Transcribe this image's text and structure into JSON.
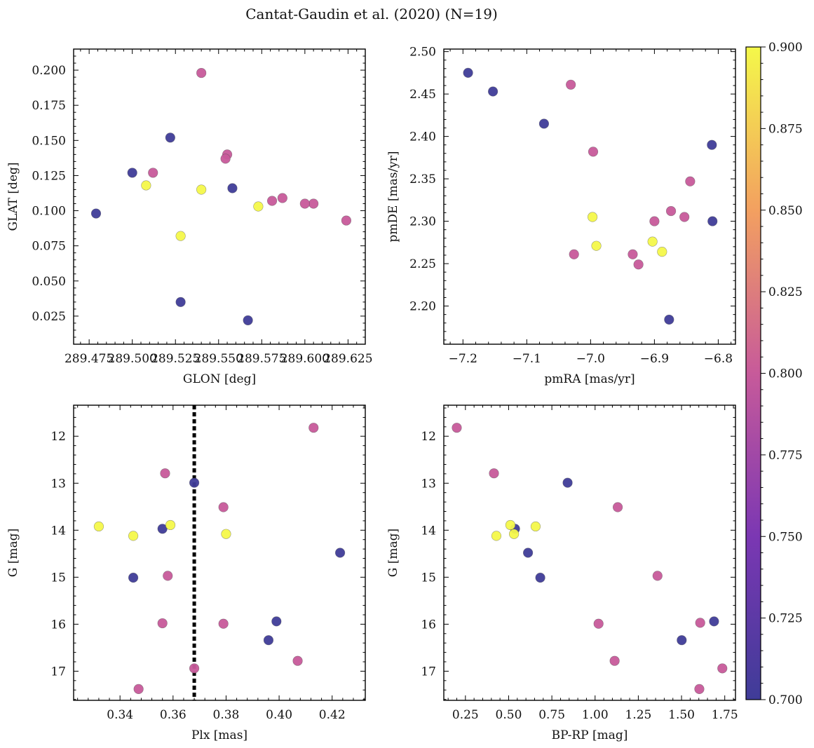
{
  "title": "Cantat-Gaudin et al. (2020) (N=19)",
  "colorbar": {
    "vmin": 0.7,
    "vmax": 0.9,
    "ticks": [
      "0.700",
      "0.725",
      "0.750",
      "0.775",
      "0.800",
      "0.825",
      "0.850",
      "0.875",
      "0.900"
    ]
  },
  "chart_data": [
    {
      "type": "scatter",
      "title": "",
      "xlabel": "GLON [deg]",
      "ylabel": "GLAT [deg]",
      "xlim": [
        289.466,
        289.635
      ],
      "ylim": [
        0.005,
        0.215
      ],
      "xticks": [
        "289.475",
        "289.500",
        "289.525",
        "289.550",
        "289.575",
        "289.600",
        "289.625"
      ],
      "yticks": [
        "0.025",
        "0.050",
        "0.075",
        "0.100",
        "0.125",
        "0.150",
        "0.175",
        "0.200"
      ],
      "x": [
        289.479,
        289.5,
        289.512,
        289.522,
        289.528,
        289.54,
        289.555,
        289.554,
        289.558,
        289.567,
        289.581,
        289.587,
        289.605,
        289.528,
        289.508,
        289.54,
        289.573,
        289.6,
        289.624
      ],
      "y": [
        0.098,
        0.127,
        0.127,
        0.152,
        0.035,
        0.198,
        0.14,
        0.137,
        0.116,
        0.022,
        0.107,
        0.109,
        0.105,
        0.082,
        0.118,
        0.115,
        0.103,
        0.105,
        0.093
      ],
      "c": [
        0.7,
        0.7,
        0.8,
        0.7,
        0.7,
        0.8,
        0.8,
        0.8,
        0.7,
        0.7,
        0.8,
        0.8,
        0.8,
        0.9,
        0.9,
        0.9,
        0.9,
        0.8,
        0.8
      ]
    },
    {
      "type": "scatter",
      "title": "",
      "xlabel": "pmRA [mas/yr]",
      "ylabel": "pmDE [mas/yr]",
      "xlim": [
        -7.23,
        -6.773
      ],
      "ylim": [
        2.155,
        2.503
      ],
      "xticks": [
        "−7.2",
        "−7.1",
        "−7.0",
        "−6.9",
        "−6.8"
      ],
      "yticks": [
        "2.20",
        "2.25",
        "2.30",
        "2.35",
        "2.40",
        "2.45",
        "2.50"
      ],
      "x": [
        -7.192,
        -7.153,
        -7.073,
        -7.031,
        -6.996,
        -6.997,
        -7.026,
        -6.934,
        -6.925,
        -6.903,
        -6.888,
        -6.9,
        -6.874,
        -6.853,
        -6.844,
        -6.81,
        -6.809,
        -6.877,
        -6.991
      ],
      "y": [
        2.475,
        2.453,
        2.415,
        2.461,
        2.382,
        2.305,
        2.261,
        2.261,
        2.249,
        2.276,
        2.264,
        2.3,
        2.312,
        2.305,
        2.347,
        2.39,
        2.3,
        2.184,
        2.271
      ],
      "c": [
        0.7,
        0.7,
        0.7,
        0.8,
        0.8,
        0.9,
        0.8,
        0.8,
        0.8,
        0.9,
        0.9,
        0.8,
        0.8,
        0.8,
        0.8,
        0.7,
        0.7,
        0.7,
        0.9
      ]
    },
    {
      "type": "scatter",
      "title": "",
      "xlabel": "Plx [mas]",
      "ylabel": "G [mag]",
      "xlim": [
        0.3225,
        0.4325
      ],
      "ylim": [
        17.62,
        11.34
      ],
      "y_inverted": true,
      "xticks": [
        "0.34",
        "0.36",
        "0.38",
        "0.40",
        "0.42"
      ],
      "yticks": [
        "12",
        "13",
        "14",
        "15",
        "16",
        "17"
      ],
      "vline": 0.368,
      "x": [
        0.332,
        0.345,
        0.345,
        0.347,
        0.356,
        0.356,
        0.357,
        0.358,
        0.359,
        0.368,
        0.368,
        0.379,
        0.379,
        0.38,
        0.396,
        0.399,
        0.407,
        0.413,
        0.423
      ],
      "y": [
        13.92,
        14.12,
        15.01,
        17.38,
        15.98,
        13.97,
        12.79,
        14.97,
        13.89,
        12.99,
        16.94,
        15.99,
        13.51,
        14.08,
        16.34,
        15.94,
        16.78,
        11.82,
        14.48
      ],
      "c": [
        0.9,
        0.9,
        0.7,
        0.8,
        0.8,
        0.7,
        0.8,
        0.8,
        0.9,
        0.7,
        0.8,
        0.8,
        0.8,
        0.9,
        0.7,
        0.7,
        0.8,
        0.8,
        0.7
      ]
    },
    {
      "type": "scatter",
      "title": "",
      "xlabel": "BP-RP [mag]",
      "ylabel": "G [mag]",
      "xlim": [
        0.125,
        1.812
      ],
      "ylim": [
        17.62,
        11.34
      ],
      "y_inverted": true,
      "xticks": [
        "0.25",
        "0.50",
        "0.75",
        "1.00",
        "1.25",
        "1.50",
        "1.75"
      ],
      "yticks": [
        "12",
        "13",
        "14",
        "15",
        "16",
        "17"
      ],
      "x": [
        0.2,
        0.415,
        0.841,
        1.131,
        0.537,
        0.51,
        0.429,
        0.531,
        0.656,
        0.612,
        0.683,
        1.361,
        1.02,
        1.113,
        1.501,
        1.608,
        1.688,
        1.736,
        1.603
      ],
      "y": [
        11.82,
        12.79,
        12.99,
        13.51,
        13.97,
        13.89,
        14.12,
        14.08,
        13.92,
        14.48,
        15.01,
        14.97,
        15.99,
        16.78,
        16.34,
        15.97,
        15.94,
        16.94,
        17.38
      ],
      "c": [
        0.8,
        0.8,
        0.7,
        0.8,
        0.7,
        0.9,
        0.9,
        0.9,
        0.9,
        0.7,
        0.7,
        0.8,
        0.8,
        0.8,
        0.7,
        0.8,
        0.7,
        0.8,
        0.8
      ]
    }
  ]
}
